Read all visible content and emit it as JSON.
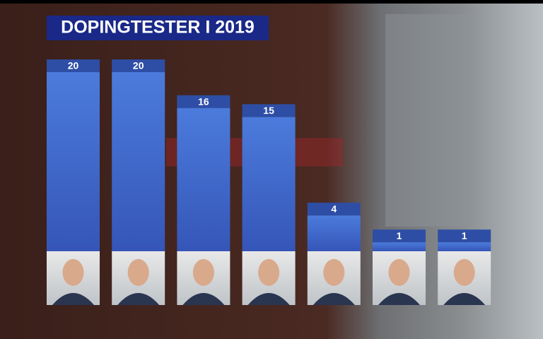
{
  "chart_data": {
    "type": "bar",
    "title": "DOPINGTESTER I 2019",
    "categories": [
      null,
      null,
      null,
      null,
      null,
      null,
      null
    ],
    "values": [
      20,
      20,
      16,
      15,
      4,
      1,
      1
    ],
    "color": "#4676d4"
  }
}
